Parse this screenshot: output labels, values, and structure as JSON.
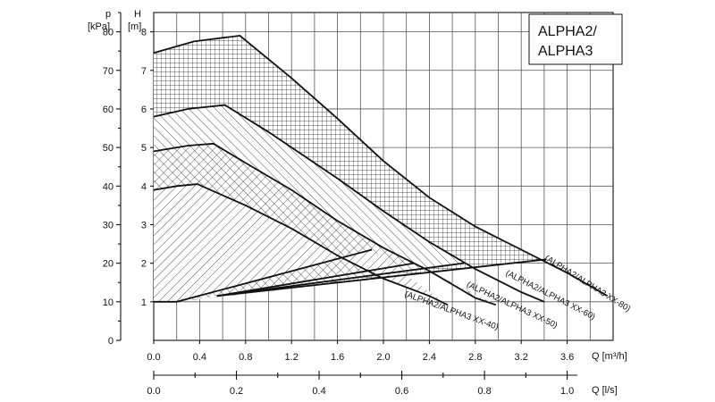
{
  "chart_data": {
    "type": "line",
    "title_lines": [
      "ALPHA2/",
      "ALPHA3"
    ],
    "y_axis_head": {
      "symbol": "H",
      "unit": "[m]"
    },
    "y_axis_pressure": {
      "symbol": "p",
      "unit": "[kPa]"
    },
    "x_label_m3h": "Q [m³/h]",
    "x_label_ls": "Q [l/s]",
    "xlim": [
      0,
      4.0
    ],
    "ylim": [
      0,
      8.5
    ],
    "pressure_lim": [
      0,
      85
    ],
    "ls_lim": [
      0,
      1.11
    ],
    "x_ticks": [
      "0.0",
      "0.4",
      "0.8",
      "1.2",
      "1.6",
      "2.0",
      "2.4",
      "2.8",
      "3.2",
      "3.6"
    ],
    "y_ticks": [
      "1",
      "2",
      "3",
      "4",
      "5",
      "6",
      "7",
      "8"
    ],
    "pressure_ticks": [
      "0",
      "10",
      "20",
      "30",
      "40",
      "50",
      "60",
      "70",
      "80"
    ],
    "ls_ticks": [
      "0.0",
      "0.2",
      "0.4",
      "0.6",
      "0.8",
      "1.0"
    ],
    "series": [
      {
        "name": "(ALPHA2/ALPHA3 XX-40)",
        "max_curve": [
          [
            0,
            3.9
          ],
          [
            0.2,
            4.0
          ],
          [
            0.38,
            4.05
          ],
          [
            0.8,
            3.5
          ],
          [
            1.2,
            2.9
          ],
          [
            1.6,
            2.2
          ],
          [
            2.0,
            1.6
          ],
          [
            2.4,
            1.15
          ],
          [
            2.56,
            0.92
          ]
        ],
        "control_line": [
          [
            0,
            1.0
          ],
          [
            0.2,
            1.0
          ],
          [
            1.9,
            2.35
          ]
        ],
        "hatch": "diagonal"
      },
      {
        "name": "(ALPHA2/ALPHA3 XX-50)",
        "max_curve": [
          [
            0,
            4.9
          ],
          [
            0.3,
            5.05
          ],
          [
            0.52,
            5.1
          ],
          [
            0.8,
            4.6
          ],
          [
            1.2,
            3.9
          ],
          [
            1.6,
            3.1
          ],
          [
            2.0,
            2.4
          ],
          [
            2.4,
            1.8
          ],
          [
            2.8,
            1.1
          ],
          [
            2.98,
            0.92
          ]
        ],
        "control_line": [
          [
            0.55,
            1.15
          ],
          [
            2.27,
            2.0
          ]
        ],
        "hatch": "diagonal-cross"
      },
      {
        "name": "(ALPHA2/ALPHA3 XX-60)",
        "max_curve": [
          [
            0,
            5.8
          ],
          [
            0.3,
            6.0
          ],
          [
            0.62,
            6.1
          ],
          [
            1.0,
            5.4
          ],
          [
            1.6,
            4.2
          ],
          [
            2.0,
            3.35
          ],
          [
            2.4,
            2.55
          ],
          [
            2.8,
            1.85
          ],
          [
            3.2,
            1.25
          ],
          [
            3.4,
            1.0
          ]
        ],
        "control_line": [
          [
            0.55,
            1.15
          ],
          [
            2.7,
            2.0
          ]
        ],
        "hatch": "diagonal-alt"
      },
      {
        "name": "(ALPHA2/ALPHA3 XX-80)",
        "max_curve": [
          [
            0,
            7.45
          ],
          [
            0.35,
            7.75
          ],
          [
            0.75,
            7.9
          ],
          [
            1.2,
            6.8
          ],
          [
            1.6,
            5.75
          ],
          [
            2.0,
            4.65
          ],
          [
            2.4,
            3.7
          ],
          [
            2.8,
            2.95
          ],
          [
            3.2,
            2.35
          ],
          [
            3.6,
            1.75
          ],
          [
            3.95,
            1.15
          ]
        ],
        "control_line": [
          [
            0.55,
            1.15
          ],
          [
            3.42,
            2.1
          ]
        ],
        "hatch": "grid"
      }
    ],
    "grid": true
  }
}
